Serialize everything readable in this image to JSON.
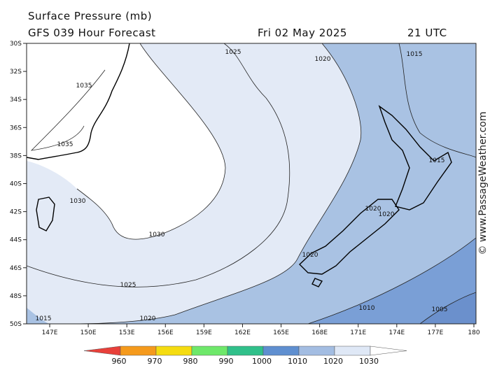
{
  "header": {
    "title": "Surface Pressure (mb)",
    "subtitle": "GFS 039 Hour Forecast",
    "date": "Fri 02 May 2025",
    "time": "21 UTC"
  },
  "map": {
    "lat_labels": [
      "30S",
      "32S",
      "34S",
      "36S",
      "38S",
      "40S",
      "42S",
      "44S",
      "46S",
      "48S",
      "50S"
    ],
    "lon_labels": [
      "147E",
      "150E",
      "153E",
      "156E",
      "159E",
      "162E",
      "165E",
      "168E",
      "171E",
      "174E",
      "177E",
      "180"
    ],
    "contour_labels": [
      "1025",
      "1020",
      "1015",
      "1035",
      "1035",
      "1030",
      "1030",
      "1025",
      "1020",
      "1015",
      "1020",
      "1020",
      "1020",
      "1015",
      "1010",
      "1005"
    ]
  },
  "legend": {
    "levels": [
      960,
      970,
      980,
      990,
      1000,
      1010,
      1020,
      1030
    ]
  },
  "watermark": "© www.PassageWeather.com"
}
